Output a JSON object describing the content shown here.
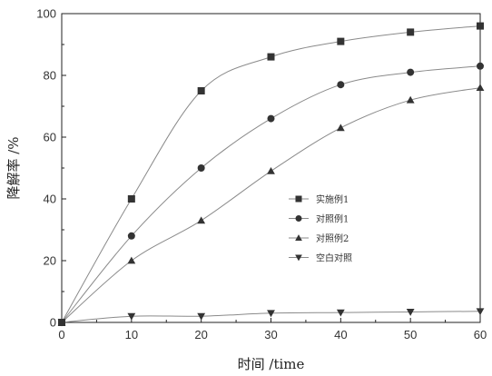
{
  "chart_data": {
    "type": "line",
    "title": "",
    "xlabel": "时间 /time",
    "ylabel": "降解率 /%",
    "xlim": [
      0,
      60
    ],
    "ylim": [
      0,
      100
    ],
    "x_ticks": [
      0,
      10,
      20,
      30,
      40,
      50,
      60
    ],
    "y_ticks": [
      0,
      20,
      40,
      60,
      80,
      100
    ],
    "grid": false,
    "legend_position": "center-right",
    "x": [
      0,
      10,
      20,
      30,
      40,
      50,
      60
    ],
    "series": [
      {
        "name": "实施例1",
        "marker": "square",
        "values": [
          0,
          40,
          75,
          86,
          91,
          94,
          96
        ]
      },
      {
        "name": "对照例1",
        "marker": "circle",
        "values": [
          0,
          28,
          50,
          66,
          77,
          81,
          83
        ]
      },
      {
        "name": "对照例2",
        "marker": "triangle-up",
        "values": [
          0,
          20,
          33,
          49,
          63,
          72,
          76
        ]
      },
      {
        "name": "空白对照",
        "marker": "triangle-down",
        "values": [
          0,
          2,
          2,
          3,
          3.2,
          3.4,
          3.6
        ]
      }
    ],
    "colors": {
      "line": "#8a8a8a",
      "marker": "#333333",
      "axis": "#222222"
    }
  }
}
